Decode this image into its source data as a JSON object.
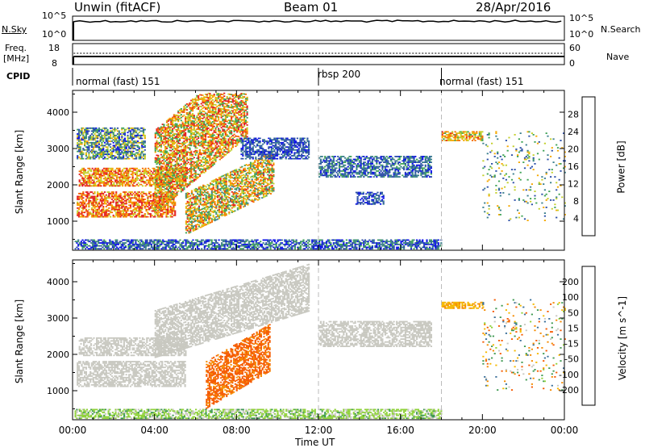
{
  "header": {
    "radar": "Unwin (fitACF)",
    "beam": "Beam 01",
    "date": "28/Apr/2016"
  },
  "nsky_panel": {
    "left_label": "N.Sky",
    "left_ticks": [
      "10^5",
      "10^0"
    ],
    "right_ticks": [
      "10^5",
      "10^0"
    ],
    "right_label": "N.Search"
  },
  "freq_panel": {
    "left_label_top": "Freq.",
    "left_label_unit": "[MHz]",
    "left_ticks": [
      "18",
      "8"
    ],
    "right_ticks": [
      "60",
      "0"
    ],
    "right_label": "Nave"
  },
  "cpid": {
    "label": "CPID",
    "segments": [
      {
        "name": "normal (fast) 151",
        "start_hour": 0,
        "end_hour": 12
      },
      {
        "name": "rbsp 200",
        "start_hour": 12,
        "end_hour": 18
      },
      {
        "name": "normal (fast) 151",
        "start_hour": 18,
        "end_hour": 24
      }
    ]
  },
  "chart_data": [
    {
      "type": "heatmap",
      "title": "",
      "quantity": "Power",
      "xlabel": "Time UT",
      "ylabel": "Slant Range [km]",
      "xlim": [
        0,
        24
      ],
      "ylim": [
        200,
        4600
      ],
      "yticks": [
        "1000",
        "2000",
        "3000",
        "4000"
      ],
      "colorbar": {
        "label": "Power [dB]",
        "ticks": [
          "4",
          "8",
          "12",
          "16",
          "20",
          "24",
          "28"
        ],
        "range": [
          0,
          32
        ],
        "colors": [
          "#0b10e8",
          "#2c4fa8",
          "#3b7f8d",
          "#3fa356",
          "#c3cf2a",
          "#f5a800",
          "#f56f00",
          "#e32020"
        ]
      },
      "regions": [
        {
          "t0": 0.2,
          "t1": 5.0,
          "r0": 1100,
          "r1": 1800,
          "level": 26,
          "var": 8
        },
        {
          "t0": 0.3,
          "t1": 5.5,
          "r0": 1950,
          "r1": 2450,
          "level": 24,
          "var": 8
        },
        {
          "t0": 4.0,
          "t1": 8.5,
          "r0": 1200,
          "r1": 3500,
          "slope": 470,
          "level": 22,
          "var": 10
        },
        {
          "t0": 5.5,
          "t1": 9.8,
          "r0": 620,
          "r1": 1750,
          "slope": 270,
          "level": 20,
          "var": 10
        },
        {
          "t0": 0.2,
          "t1": 3.5,
          "r0": 2700,
          "r1": 3550,
          "level": 12,
          "var": 10
        },
        {
          "t0": 8.2,
          "t1": 11.5,
          "r0": 2700,
          "r1": 3300,
          "level": 6,
          "var": 4
        },
        {
          "t0": 12.0,
          "t1": 17.5,
          "r0": 2200,
          "r1": 2800,
          "level": 8,
          "var": 6
        },
        {
          "t0": 13.8,
          "t1": 15.2,
          "r0": 1450,
          "r1": 1800,
          "level": 6,
          "var": 4
        },
        {
          "t0": 0.1,
          "t1": 18.0,
          "r0": 220,
          "r1": 480,
          "level": 7,
          "var": 8
        },
        {
          "t0": 18.0,
          "t1": 20.0,
          "r0": 3200,
          "r1": 3450,
          "level": 22,
          "var": 8
        },
        {
          "t0": 20.0,
          "t1": 24.0,
          "r0": 1000,
          "r1": 3500,
          "level": 14,
          "var": 10,
          "sparse": true
        }
      ]
    },
    {
      "type": "heatmap",
      "title": "",
      "quantity": "Velocity",
      "xlabel": "Time UT",
      "ylabel": "Slant Range [km]",
      "xlim": [
        0,
        24
      ],
      "ylim": [
        200,
        4600
      ],
      "xticks": [
        "00:00",
        "04:00",
        "08:00",
        "12:00",
        "16:00",
        "20:00",
        "00:00"
      ],
      "yticks": [
        "1000",
        "2000",
        "3000",
        "4000"
      ],
      "colorbar": {
        "label": "Velocity [m s^-1]",
        "ticks": [
          "200",
          "100",
          "50",
          "15",
          "-15",
          "-50",
          "-100",
          "-200"
        ],
        "colors": [
          "#1f2fb0",
          "#3a6f9a",
          "#3f9a52",
          "#8fd23a",
          "#c8c8c0",
          "#f5b800",
          "#f58a00",
          "#f55a00",
          "#e31a1a"
        ]
      },
      "regions": [
        {
          "t0": 0.2,
          "t1": 5.5,
          "r0": 1100,
          "r1": 1800,
          "vel": 0,
          "var": 10
        },
        {
          "t0": 0.3,
          "t1": 5.5,
          "r0": 1950,
          "r1": 2450,
          "vel": 0,
          "var": 10
        },
        {
          "t0": 4.0,
          "t1": 11.5,
          "r0": 1900,
          "r1": 3200,
          "slope": 170,
          "vel": 0,
          "var": 12
        },
        {
          "t0": 6.5,
          "t1": 9.6,
          "r0": 500,
          "r1": 1800,
          "slope": 330,
          "vel": -120,
          "var": 40
        },
        {
          "t0": 12.0,
          "t1": 17.5,
          "r0": 2200,
          "r1": 2900,
          "vel": 0,
          "var": 10
        },
        {
          "t0": 0.1,
          "t1": 18.0,
          "r0": 220,
          "r1": 480,
          "vel": 30,
          "var": 30
        },
        {
          "t0": 18.0,
          "t1": 20.0,
          "r0": 3250,
          "r1": 3450,
          "vel": -40,
          "var": 20
        },
        {
          "t0": 20.0,
          "t1": 24.0,
          "r0": 1000,
          "r1": 3500,
          "vel": 0,
          "var": 150,
          "sparse": true
        }
      ]
    }
  ]
}
